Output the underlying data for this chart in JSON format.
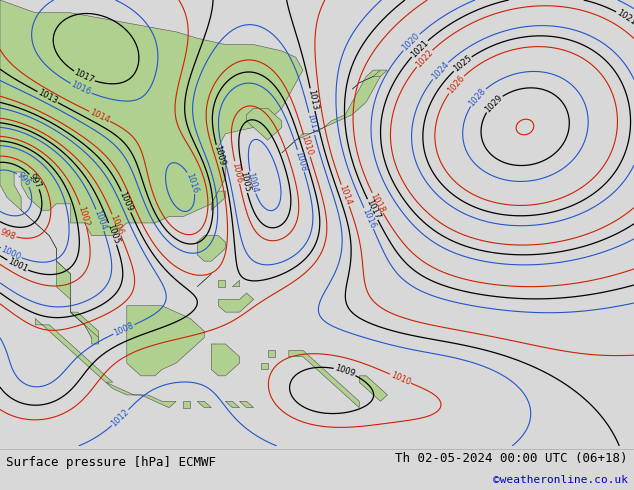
{
  "title_left": "Surface pressure [hPa] ECMWF",
  "title_right": "Th 02-05-2024 00:00 UTC (06+18)",
  "credit": "©weatheronline.co.uk",
  "ocean_color": "#c8d8e0",
  "land_color": "#b0d090",
  "font_family": "monospace",
  "bottom_bar_color": "#d8d8d8",
  "title_size": 9,
  "credit_size": 8,
  "credit_color": "#0000cc",
  "lon_min": 90,
  "lon_max": 180,
  "lat_min": -15,
  "lat_max": 55
}
